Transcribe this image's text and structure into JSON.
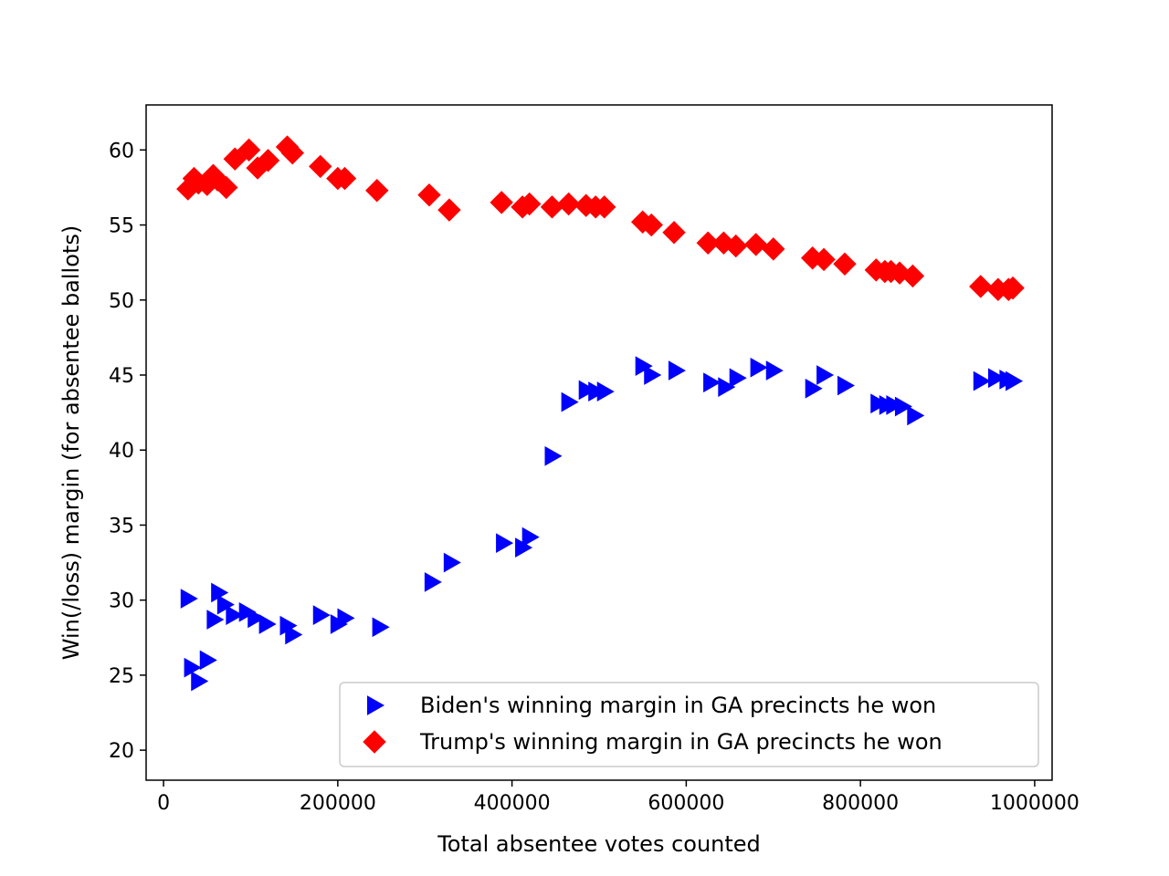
{
  "chart_data": {
    "type": "scatter",
    "title": "",
    "xlabel": "Total absentee votes counted",
    "ylabel": "Win(/loss) margin (for absentee ballots)",
    "xlim": [
      -20000,
      1020000
    ],
    "ylim": [
      18,
      63
    ],
    "xticks": [
      0,
      200000,
      400000,
      600000,
      800000,
      1000000
    ],
    "xtick_labels": [
      "0",
      "200000",
      "400000",
      "600000",
      "800000",
      "1000000"
    ],
    "yticks": [
      20,
      25,
      30,
      35,
      40,
      45,
      50,
      55,
      60
    ],
    "ytick_labels": [
      "20",
      "25",
      "30",
      "35",
      "40",
      "45",
      "50",
      "55",
      "60"
    ],
    "grid": false,
    "legend_position": "lower-right",
    "series": [
      {
        "name": "Biden's winning margin in GA precincts he won",
        "marker": "triangle-right",
        "color": "#0000ff",
        "points": [
          [
            28000,
            30.1
          ],
          [
            32000,
            25.5
          ],
          [
            40000,
            24.6
          ],
          [
            50000,
            26.0
          ],
          [
            58000,
            28.7
          ],
          [
            63000,
            30.5
          ],
          [
            70000,
            29.7
          ],
          [
            80000,
            29.0
          ],
          [
            95000,
            29.2
          ],
          [
            105000,
            28.8
          ],
          [
            118000,
            28.4
          ],
          [
            142000,
            28.3
          ],
          [
            148000,
            27.7
          ],
          [
            180000,
            29.0
          ],
          [
            200000,
            28.4
          ],
          [
            208000,
            28.8
          ],
          [
            248000,
            28.2
          ],
          [
            308000,
            31.2
          ],
          [
            330000,
            32.5
          ],
          [
            390000,
            33.8
          ],
          [
            412000,
            33.5
          ],
          [
            420000,
            34.2
          ],
          [
            446000,
            39.6
          ],
          [
            465000,
            43.2
          ],
          [
            485000,
            44.0
          ],
          [
            496000,
            43.9
          ],
          [
            506000,
            43.9
          ],
          [
            550000,
            45.6
          ],
          [
            560000,
            45.0
          ],
          [
            588000,
            45.3
          ],
          [
            628000,
            44.5
          ],
          [
            645000,
            44.2
          ],
          [
            658000,
            44.8
          ],
          [
            682000,
            45.5
          ],
          [
            700000,
            45.3
          ],
          [
            745000,
            44.1
          ],
          [
            758000,
            45.0
          ],
          [
            782000,
            44.3
          ],
          [
            820000,
            43.1
          ],
          [
            830000,
            43.0
          ],
          [
            838000,
            43.0
          ],
          [
            848000,
            42.9
          ],
          [
            862000,
            42.3
          ],
          [
            938000,
            44.6
          ],
          [
            955000,
            44.8
          ],
          [
            968000,
            44.7
          ],
          [
            975000,
            44.6
          ]
        ]
      },
      {
        "name": "Trump's winning margin in GA precincts he won",
        "marker": "diamond",
        "color": "#ff0000",
        "points": [
          [
            28000,
            57.4
          ],
          [
            35000,
            58.1
          ],
          [
            40000,
            57.8
          ],
          [
            50000,
            57.7
          ],
          [
            57000,
            58.3
          ],
          [
            62000,
            58.0
          ],
          [
            72000,
            57.5
          ],
          [
            82000,
            59.4
          ],
          [
            98000,
            60.0
          ],
          [
            108000,
            58.8
          ],
          [
            120000,
            59.3
          ],
          [
            142000,
            60.2
          ],
          [
            148000,
            59.8
          ],
          [
            180000,
            58.9
          ],
          [
            200000,
            58.1
          ],
          [
            208000,
            58.1
          ],
          [
            245000,
            57.3
          ],
          [
            305000,
            57.0
          ],
          [
            328000,
            56.0
          ],
          [
            388000,
            56.5
          ],
          [
            412000,
            56.2
          ],
          [
            420000,
            56.4
          ],
          [
            446000,
            56.2
          ],
          [
            465000,
            56.4
          ],
          [
            485000,
            56.3
          ],
          [
            496000,
            56.2
          ],
          [
            506000,
            56.2
          ],
          [
            550000,
            55.2
          ],
          [
            560000,
            55.0
          ],
          [
            586000,
            54.5
          ],
          [
            625000,
            53.8
          ],
          [
            643000,
            53.8
          ],
          [
            657000,
            53.6
          ],
          [
            680000,
            53.7
          ],
          [
            700000,
            53.4
          ],
          [
            745000,
            52.8
          ],
          [
            758000,
            52.7
          ],
          [
            782000,
            52.4
          ],
          [
            818000,
            52.0
          ],
          [
            828000,
            51.9
          ],
          [
            835000,
            51.9
          ],
          [
            845000,
            51.8
          ],
          [
            860000,
            51.6
          ],
          [
            938000,
            50.9
          ],
          [
            958000,
            50.7
          ],
          [
            970000,
            50.7
          ],
          [
            975000,
            50.8
          ]
        ]
      }
    ]
  }
}
